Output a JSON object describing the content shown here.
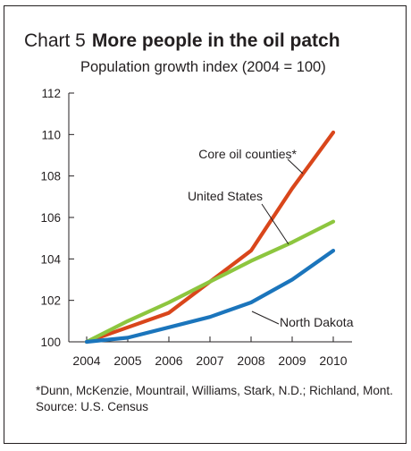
{
  "figure": {
    "label": "Chart 5",
    "title": "More people in the oil patch",
    "subtitle": "Population growth index (2004 = 100)",
    "footnote": "*Dunn, McKenzie, Mountrail, Williams, Stark, N.D.; Richland, Mont.",
    "source": "Source: U.S. Census"
  },
  "chart_data": {
    "type": "line",
    "title": "More people in the oil patch",
    "subtitle": "Population growth index (2004 = 100)",
    "x": [
      2004,
      2005,
      2006,
      2007,
      2008,
      2009,
      2010
    ],
    "x_tick_labels": [
      "2004",
      "2005",
      "2006",
      "2007",
      "2008",
      "2009",
      "2010"
    ],
    "y_tick_labels": [
      "100",
      "102",
      "104",
      "106",
      "108",
      "110",
      "112"
    ],
    "ylim": [
      100,
      112
    ],
    "grid": false,
    "legend": "direct labels on lines",
    "series": [
      {
        "name": "Core oil counties*",
        "color": "#d9461b",
        "values": [
          100.0,
          100.7,
          101.4,
          102.9,
          104.4,
          107.4,
          110.1
        ]
      },
      {
        "name": "United States",
        "color": "#8dc63f",
        "values": [
          100.0,
          101.0,
          101.9,
          102.9,
          103.9,
          104.8,
          105.8
        ]
      },
      {
        "name": "North Dakota",
        "color": "#1b75bc",
        "values": [
          100.0,
          100.2,
          100.7,
          101.2,
          101.9,
          103.0,
          104.4
        ]
      }
    ]
  }
}
